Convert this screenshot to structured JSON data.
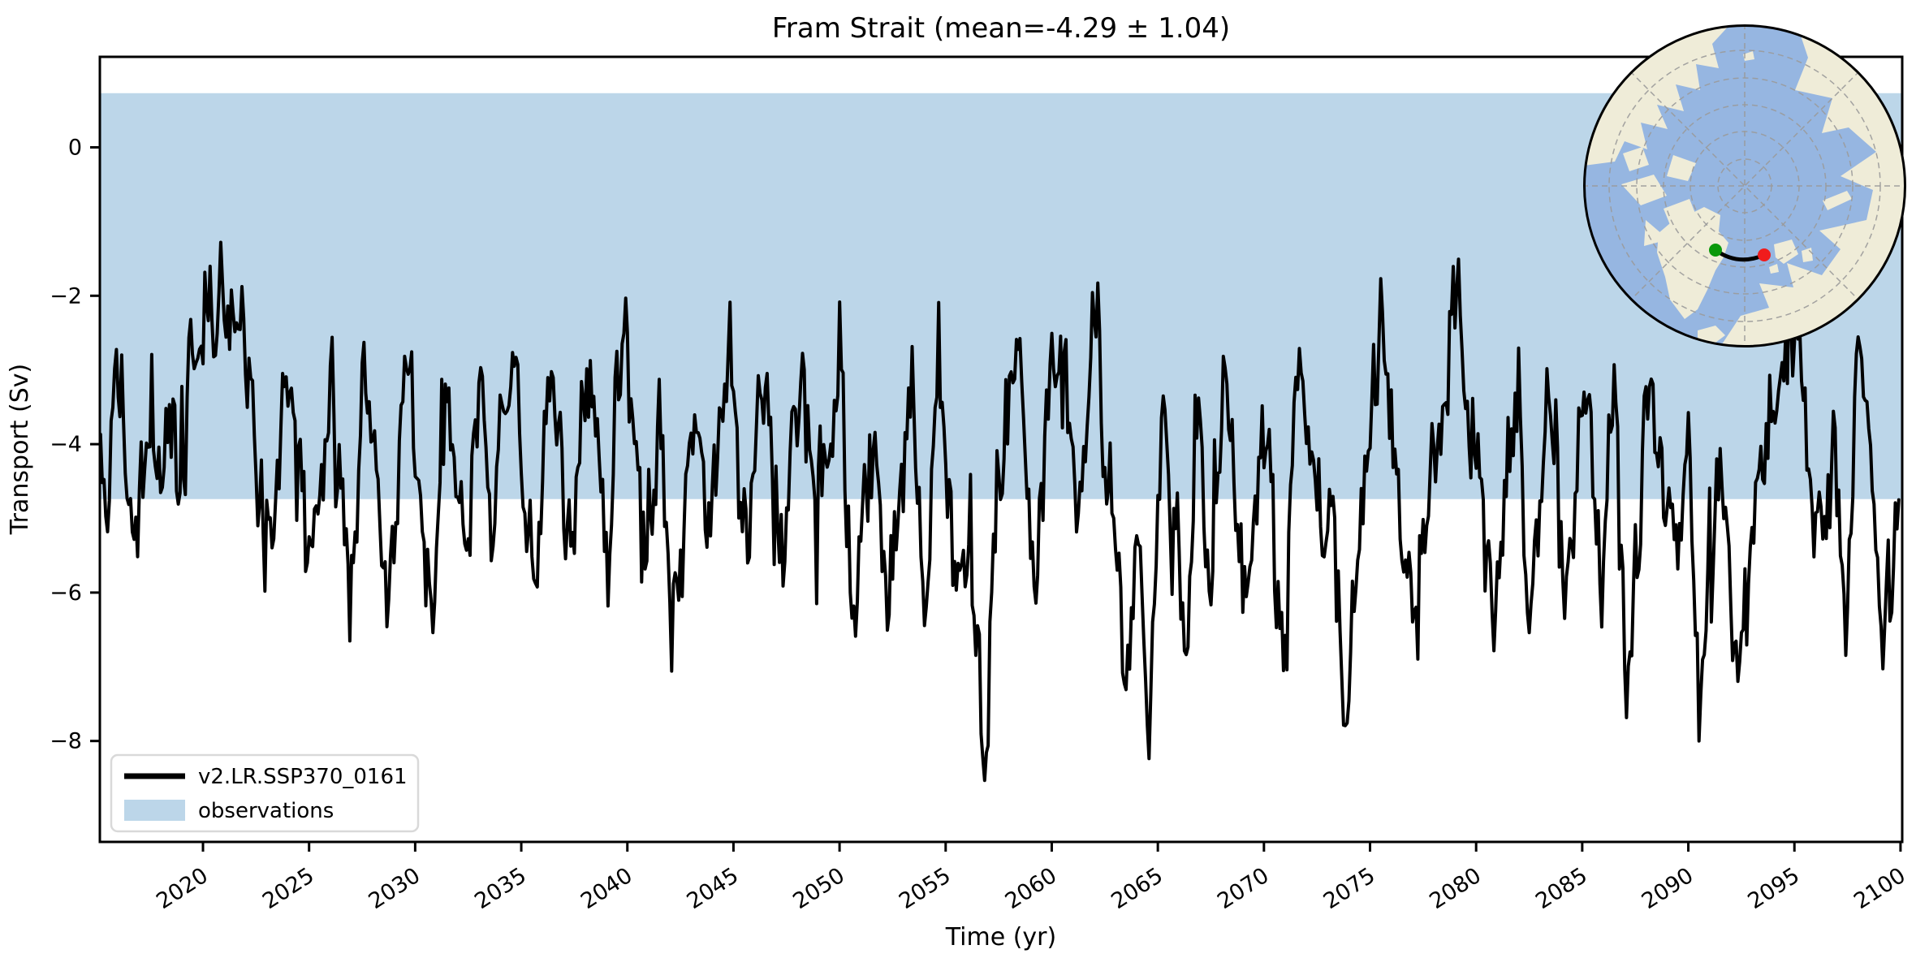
{
  "figure": {
    "title": "Fram Strait (mean=-4.29 ± 1.04)",
    "background": "#ffffff"
  },
  "axes": {
    "xlabel": "Time (yr)",
    "ylabel": "Transport (Sv)",
    "xlim": [
      2015.14,
      2100.08
    ],
    "ylim": [
      -9.36,
      1.22
    ],
    "x_ticks": [
      2020,
      2025,
      2030,
      2035,
      2040,
      2045,
      2050,
      2055,
      2060,
      2065,
      2070,
      2075,
      2080,
      2085,
      2090,
      2095,
      2100
    ],
    "x_tick_labels": [
      "2020",
      "2025",
      "2030",
      "2035",
      "2040",
      "2045",
      "2050",
      "2055",
      "2060",
      "2065",
      "2070",
      "2075",
      "2080",
      "2085",
      "2090",
      "2095",
      "2100"
    ],
    "y_ticks": [
      0,
      -2,
      -4,
      -6,
      -8
    ],
    "y_tick_labels": [
      "0",
      "−2",
      "−4",
      "−6",
      "−8"
    ],
    "spine_color": "#000000"
  },
  "legend": {
    "position": "lower left",
    "border_color": "#d9d9d9",
    "entries": [
      {
        "type": "line",
        "color": "#000000",
        "label": "v2.LR.SSP370_0161"
      },
      {
        "type": "patch",
        "color": "#bcd6e9",
        "label": "observations"
      }
    ]
  },
  "chart_data": {
    "type": "line",
    "title": "Fram Strait (mean=-4.29 ± 1.04)",
    "xlabel": "Time (yr)",
    "ylabel": "Transport (Sv)",
    "xlim": [
      2015.14,
      2100.08
    ],
    "ylim": [
      -9.36,
      1.22
    ],
    "grid": false,
    "legend_position": "lower left",
    "bands": [
      {
        "name": "observations",
        "y0": -4.74,
        "y1": 0.73,
        "color": "#bcd6e9"
      }
    ],
    "series": [
      {
        "name": "v2.LR.SSP370_0161",
        "color": "#000000",
        "linewidth": 4,
        "stats": {
          "mean": -4.29,
          "std": 1.04,
          "min": -8.8,
          "max": -1.3
        },
        "sampling": {
          "start": 2015.17,
          "end": 2100.0,
          "per_year": 12
        },
        "noise": {
          "seed": 161,
          "sigma": 0.42,
          "phi": 0.25,
          "clamp_lo": -8.85,
          "clamp_hi": -1.28
        },
        "keypoints": [
          [
            2015.17,
            -3.9
          ],
          [
            2015.5,
            -5.2
          ],
          [
            2015.95,
            -2.7
          ],
          [
            2016.4,
            -4.6
          ],
          [
            2016.9,
            -5.5
          ],
          [
            2017.4,
            -3.6
          ],
          [
            2017.9,
            -4.9
          ],
          [
            2018.4,
            -3.4
          ],
          [
            2018.9,
            -5.0
          ],
          [
            2019.4,
            -2.6
          ],
          [
            2019.8,
            -3.4
          ],
          [
            2020.3,
            -1.9
          ],
          [
            2020.55,
            -2.9
          ],
          [
            2020.8,
            -1.3
          ],
          [
            2021.1,
            -2.4
          ],
          [
            2021.5,
            -1.9
          ],
          [
            2021.9,
            -2.6
          ],
          [
            2022.3,
            -3.5
          ],
          [
            2022.7,
            -4.9
          ],
          [
            2023.2,
            -5.9
          ],
          [
            2023.7,
            -3.8
          ],
          [
            2024.2,
            -3.2
          ],
          [
            2024.7,
            -5.0
          ],
          [
            2025.1,
            -6.2
          ],
          [
            2025.6,
            -4.3
          ],
          [
            2026.0,
            -2.9
          ],
          [
            2026.5,
            -4.8
          ],
          [
            2027.0,
            -5.8
          ],
          [
            2027.6,
            -2.9
          ],
          [
            2028.2,
            -4.5
          ],
          [
            2028.7,
            -6.2
          ],
          [
            2029.3,
            -3.8
          ],
          [
            2029.8,
            -3.1
          ],
          [
            2030.3,
            -4.7
          ],
          [
            2030.8,
            -6.5
          ],
          [
            2031.4,
            -3.2
          ],
          [
            2032.0,
            -4.4
          ],
          [
            2032.5,
            -5.6
          ],
          [
            2033.0,
            -2.8
          ],
          [
            2033.6,
            -5.1
          ],
          [
            2034.2,
            -3.8
          ],
          [
            2034.7,
            -3.0
          ],
          [
            2035.2,
            -4.8
          ],
          [
            2035.7,
            -5.9
          ],
          [
            2036.3,
            -3.1
          ],
          [
            2036.9,
            -4.2
          ],
          [
            2037.4,
            -5.3
          ],
          [
            2038.0,
            -2.9
          ],
          [
            2038.6,
            -4.4
          ],
          [
            2039.1,
            -5.5
          ],
          [
            2039.8,
            -2.3
          ],
          [
            2040.4,
            -4.2
          ],
          [
            2040.9,
            -5.3
          ],
          [
            2041.5,
            -3.3
          ],
          [
            2042.1,
            -6.5
          ],
          [
            2042.7,
            -4.6
          ],
          [
            2043.2,
            -3.5
          ],
          [
            2043.8,
            -5.0
          ],
          [
            2044.4,
            -3.9
          ],
          [
            2044.9,
            -2.6
          ],
          [
            2045.5,
            -5.6
          ],
          [
            2046.1,
            -4.0
          ],
          [
            2046.6,
            -3.2
          ],
          [
            2047.2,
            -5.9
          ],
          [
            2047.8,
            -4.2
          ],
          [
            2048.3,
            -3.0
          ],
          [
            2048.9,
            -5.2
          ],
          [
            2049.5,
            -4.1
          ],
          [
            2050.0,
            -2.7
          ],
          [
            2050.6,
            -6.4
          ],
          [
            2051.2,
            -4.6
          ],
          [
            2051.8,
            -4.0
          ],
          [
            2052.3,
            -6.8
          ],
          [
            2052.9,
            -4.4
          ],
          [
            2053.4,
            -3.1
          ],
          [
            2054.0,
            -6.6
          ],
          [
            2054.6,
            -2.7
          ],
          [
            2055.2,
            -4.9
          ],
          [
            2055.8,
            -6.0
          ],
          [
            2056.3,
            -5.2
          ],
          [
            2056.8,
            -8.8
          ],
          [
            2057.4,
            -4.8
          ],
          [
            2058.0,
            -3.4
          ],
          [
            2058.5,
            -2.5
          ],
          [
            2059.1,
            -5.7
          ],
          [
            2059.7,
            -3.6
          ],
          [
            2060.2,
            -2.4
          ],
          [
            2060.8,
            -3.9
          ],
          [
            2061.3,
            -5.3
          ],
          [
            2061.9,
            -1.9
          ],
          [
            2062.5,
            -4.1
          ],
          [
            2063.0,
            -5.0
          ],
          [
            2063.5,
            -7.4
          ],
          [
            2064.1,
            -5.2
          ],
          [
            2064.6,
            -7.8
          ],
          [
            2065.2,
            -3.3
          ],
          [
            2065.8,
            -5.5
          ],
          [
            2066.3,
            -7.3
          ],
          [
            2066.9,
            -3.4
          ],
          [
            2067.5,
            -5.9
          ],
          [
            2068.1,
            -3.3
          ],
          [
            2068.7,
            -5.0
          ],
          [
            2069.3,
            -6.3
          ],
          [
            2069.9,
            -3.7
          ],
          [
            2070.5,
            -5.4
          ],
          [
            2071.0,
            -6.5
          ],
          [
            2071.6,
            -3.0
          ],
          [
            2072.2,
            -4.4
          ],
          [
            2072.8,
            -5.2
          ],
          [
            2073.3,
            -4.2
          ],
          [
            2073.8,
            -8.0
          ],
          [
            2074.4,
            -5.6
          ],
          [
            2075.0,
            -4.0
          ],
          [
            2075.5,
            -1.7
          ],
          [
            2076.1,
            -3.9
          ],
          [
            2076.7,
            -5.5
          ],
          [
            2077.2,
            -6.6
          ],
          [
            2077.8,
            -4.8
          ],
          [
            2078.4,
            -3.6
          ],
          [
            2079.1,
            -1.9
          ],
          [
            2079.7,
            -4.1
          ],
          [
            2080.2,
            -5.0
          ],
          [
            2080.8,
            -6.8
          ],
          [
            2081.4,
            -4.3
          ],
          [
            2082.0,
            -3.4
          ],
          [
            2082.5,
            -6.2
          ],
          [
            2083.1,
            -4.4
          ],
          [
            2083.6,
            -2.9
          ],
          [
            2084.2,
            -6.3
          ],
          [
            2084.8,
            -4.4
          ],
          [
            2085.3,
            -3.3
          ],
          [
            2085.9,
            -6.4
          ],
          [
            2086.5,
            -2.8
          ],
          [
            2087.1,
            -7.4
          ],
          [
            2087.7,
            -5.3
          ],
          [
            2088.2,
            -2.8
          ],
          [
            2088.8,
            -4.6
          ],
          [
            2089.4,
            -5.6
          ],
          [
            2090.0,
            -4.2
          ],
          [
            2090.5,
            -7.8
          ],
          [
            2091.1,
            -5.2
          ],
          [
            2091.7,
            -4.4
          ],
          [
            2092.3,
            -7.5
          ],
          [
            2092.9,
            -5.6
          ],
          [
            2093.5,
            -4.0
          ],
          [
            2094.1,
            -3.2
          ],
          [
            2094.6,
            -2.6
          ],
          [
            2095.2,
            -2.2
          ],
          [
            2095.8,
            -5.0
          ],
          [
            2096.3,
            -5.4
          ],
          [
            2096.9,
            -4.1
          ],
          [
            2097.4,
            -6.5
          ],
          [
            2098.0,
            -2.2
          ],
          [
            2098.6,
            -4.3
          ],
          [
            2099.2,
            -6.7
          ],
          [
            2099.7,
            -5.5
          ],
          [
            2100.0,
            -4.3
          ]
        ]
      }
    ]
  },
  "inset_map": {
    "description": "arctic polar stereographic inset showing Fram Strait transect",
    "ocean_color": "#96b6e1",
    "land_color": "#efecd8",
    "graticule_color": "#9a9a9a",
    "border_color": "#000000",
    "transect": {
      "color": "#000000",
      "start_marker_color": "#0a980a",
      "end_marker_color": "#f01c1c"
    }
  }
}
